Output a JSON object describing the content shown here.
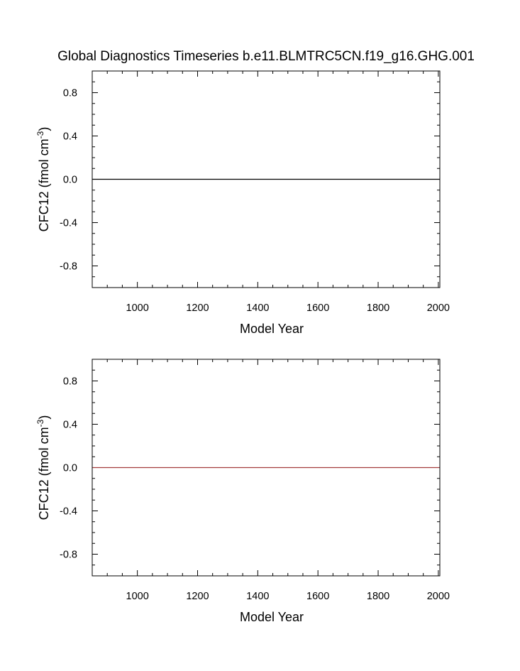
{
  "figure": {
    "title": "Global Diagnostics Timeseries b.e11.BLMTRC5CN.f19_g16.GHG.001"
  },
  "chart_data": [
    {
      "type": "line",
      "title": "Global Diagnostics Timeseries b.e11.BLMTRC5CN.f19_g16.GHG.001",
      "xlabel": "Model Year",
      "ylabel_main": "CFC12 (fmol cm",
      "ylabel_exp": "-3",
      "ylabel_close": ")",
      "xlim": [
        850,
        2005
      ],
      "ylim": [
        -1.0,
        1.0
      ],
      "xticks": [
        1000,
        1200,
        1400,
        1600,
        1800,
        2000
      ],
      "xtick_labels": [
        "1000",
        "1200",
        "1400",
        "1600",
        "1800",
        "2000"
      ],
      "xminor_step": 50,
      "yticks": [
        0.8,
        0.4,
        0.0,
        -0.4,
        -0.8
      ],
      "ytick_labels": [
        "0.8",
        "0.4",
        "0.0",
        "-0.4",
        "-0.8"
      ],
      "yminor_step": 0.1,
      "grid": false,
      "series": [
        {
          "x": [
            850,
            2005
          ],
          "y": [
            0.0,
            0.0
          ],
          "color": "#000000"
        }
      ]
    },
    {
      "type": "line",
      "title": "",
      "xlabel": "Model Year",
      "ylabel_main": "CFC12 (fmol cm",
      "ylabel_exp": "-3",
      "ylabel_close": ")",
      "xlim": [
        850,
        2005
      ],
      "ylim": [
        -1.0,
        1.0
      ],
      "xticks": [
        1000,
        1200,
        1400,
        1600,
        1800,
        2000
      ],
      "xtick_labels": [
        "1000",
        "1200",
        "1400",
        "1600",
        "1800",
        "2000"
      ],
      "xminor_step": 50,
      "yticks": [
        0.8,
        0.4,
        0.0,
        -0.4,
        -0.8
      ],
      "ytick_labels": [
        "0.8",
        "0.4",
        "0.0",
        "-0.4",
        "-0.8"
      ],
      "yminor_step": 0.1,
      "grid": false,
      "series": [
        {
          "x": [
            850,
            2005
          ],
          "y": [
            0.0,
            0.0
          ],
          "color": "#a33b3b"
        }
      ]
    }
  ]
}
